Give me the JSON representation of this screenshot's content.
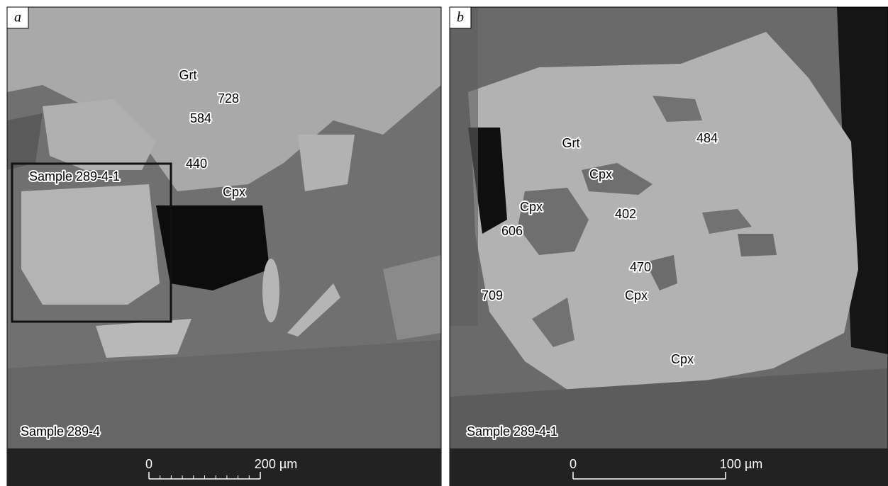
{
  "panels": [
    {
      "letter": "a",
      "sample": "Sample 289-4",
      "inset": "Sample 289-4-1",
      "labels": [
        "Grt",
        "728",
        "584",
        "440",
        "Cpx"
      ],
      "scale": {
        "start": "0",
        "end": "200 µm"
      }
    },
    {
      "letter": "b",
      "sample": "Sample 289-4-1",
      "labels": [
        "Grt",
        "484",
        "Cpx",
        "Cpx",
        "402",
        "606",
        "470",
        "Cpx",
        "709",
        "Cpx"
      ],
      "scale": {
        "start": "0",
        "end": "100 µm"
      }
    }
  ]
}
